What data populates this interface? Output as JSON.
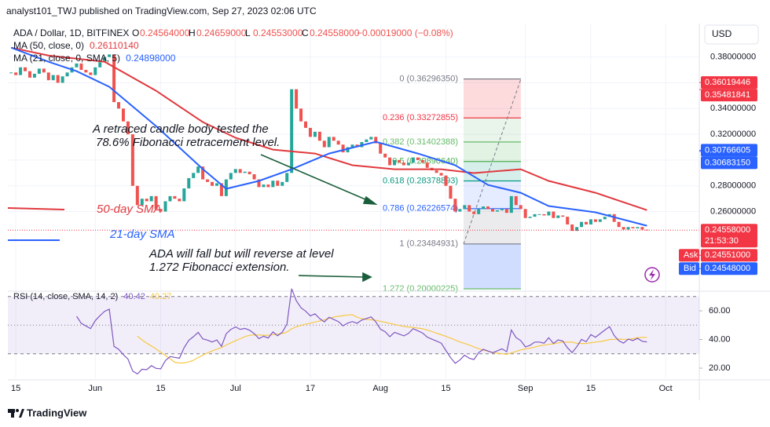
{
  "header": "analyst101_TWJ published on TradingView.com, Sep 27, 2023 02:06 UTC",
  "footer": "TradingView",
  "chart_data": {
    "type": "candlestick",
    "symbol": "ADA / Dollar, 1D, BITFINEX",
    "ohlc": [
      {
        "label": "O",
        "value": "0.24564000"
      },
      {
        "label": "H",
        "value": "0.24659000"
      },
      {
        "label": "L",
        "value": "0.24553000"
      },
      {
        "label": "C",
        "value": "0.24558000"
      }
    ],
    "change": "−0.00019000 (−0.08%)",
    "currency": "USD",
    "colors": {
      "up": "#26a69a",
      "down": "#ef5350"
    },
    "closes": [
      0.368,
      0.366,
      0.372,
      0.369,
      0.364,
      0.367,
      0.371,
      0.368,
      0.362,
      0.366,
      0.36,
      0.365,
      0.368,
      0.372,
      0.375,
      0.37,
      0.368,
      0.366,
      0.372,
      0.376,
      0.38,
      0.382,
      0.345,
      0.34,
      0.33,
      0.32,
      0.28,
      0.265,
      0.27,
      0.268,
      0.272,
      0.262,
      0.26,
      0.268,
      0.272,
      0.27,
      0.268,
      0.278,
      0.286,
      0.29,
      0.295,
      0.285,
      0.283,
      0.28,
      0.282,
      0.272,
      0.285,
      0.29,
      0.293,
      0.29,
      0.291,
      0.289,
      0.285,
      0.279,
      0.281,
      0.279,
      0.284,
      0.28,
      0.283,
      0.29,
      0.355,
      0.34,
      0.33,
      0.325,
      0.318,
      0.322,
      0.315,
      0.31,
      0.318,
      0.315,
      0.312,
      0.306,
      0.31,
      0.312,
      0.31,
      0.314,
      0.316,
      0.318,
      0.313,
      0.305,
      0.302,
      0.296,
      0.3,
      0.298,
      0.296,
      0.298,
      0.302,
      0.3,
      0.298,
      0.294,
      0.292,
      0.29,
      0.288,
      0.28,
      0.27,
      0.26,
      0.262,
      0.265,
      0.26,
      0.258,
      0.262,
      0.264,
      0.262,
      0.26,
      0.261,
      0.262,
      0.259,
      0.272,
      0.265,
      0.262,
      0.255,
      0.256,
      0.258,
      0.258,
      0.257,
      0.26,
      0.255,
      0.257,
      0.256,
      0.25,
      0.245,
      0.248,
      0.252,
      0.25,
      0.254,
      0.252,
      0.254,
      0.256,
      0.258,
      0.252,
      0.248,
      0.246,
      0.248,
      0.247,
      0.248,
      0.246,
      0.24558
    ],
    "xlim": [
      -0.7,
      147.2
    ],
    "xticks": [
      {
        "value": 1,
        "label": "15"
      },
      {
        "value": 18,
        "label": "Jun"
      },
      {
        "value": 32,
        "label": "15"
      },
      {
        "value": 48,
        "label": "Jul"
      },
      {
        "value": 64,
        "label": "17"
      },
      {
        "value": 79,
        "label": "Aug"
      },
      {
        "value": 93,
        "label": "15"
      },
      {
        "value": 110,
        "label": "Sep"
      },
      {
        "value": 124,
        "label": "15"
      },
      {
        "value": 140,
        "label": "Oct"
      }
    ],
    "ylim": [
      0.2,
      0.406
    ],
    "yticks": [
      {
        "value": 0.38,
        "label": "0.38000000"
      },
      {
        "value": 0.36,
        "label": "0.36000000"
      },
      {
        "value": 0.34,
        "label": "0.34000000"
      },
      {
        "value": 0.32,
        "label": "0.32000000"
      },
      {
        "value": 0.3,
        "label": "0.30000000"
      },
      {
        "value": 0.28,
        "label": "0.28000000"
      },
      {
        "value": 0.26,
        "label": "0.26000000"
      }
    ],
    "ma": [
      {
        "name": "MA (50, close, 0)",
        "value_label": "0.26110140",
        "color": "#e0393e",
        "x": [
          0,
          8,
          20,
          31,
          41,
          48,
          56,
          65,
          73,
          82,
          92,
          99,
          109,
          115,
          125,
          136
        ],
        "values": [
          0.3873,
          0.3812,
          0.3763,
          0.3538,
          0.3295,
          0.3173,
          0.3081,
          0.3051,
          0.296,
          0.2929,
          0.2929,
          0.2899,
          0.2929,
          0.2838,
          0.2746,
          0.2611
        ]
      },
      {
        "name": "MA (21, close, 0, SMA, 5)",
        "value_label": "0.24898000",
        "color": "#2962ff",
        "x": [
          0,
          8,
          14,
          21,
          31,
          41,
          46,
          53,
          60,
          68,
          78,
          87,
          95,
          102,
          109,
          115,
          125,
          136
        ],
        "values": [
          0.3873,
          0.3763,
          0.369,
          0.3569,
          0.3264,
          0.293,
          0.2777,
          0.2838,
          0.2929,
          0.3051,
          0.3142,
          0.3051,
          0.296,
          0.2807,
          0.2746,
          0.2643,
          0.2594,
          0.249
        ]
      }
    ],
    "fib": [
      {
        "label": "0 (0.36296350)",
        "value": 0.3629635,
        "color": "#787b86",
        "fill": "rgba(242,54,69,0.18)"
      },
      {
        "label": "0.236 (0.33272855)",
        "value": 0.33272855,
        "color": "#f23645",
        "fill": "rgba(76,175,80,0.12)"
      },
      {
        "label": "0.382 (0.31402388)",
        "value": 0.31402388,
        "color": "#66bb6a",
        "fill": "rgba(76,175,80,0.16)"
      },
      {
        "label": "0.5 (0.29890640)",
        "value": 0.2989064,
        "color": "#4caf50",
        "fill": "rgba(8,153,129,0.16)"
      },
      {
        "label": "0.618 (0.28378893)",
        "value": 0.28378893,
        "color": "#089981",
        "fill": "rgba(41,98,255,0.12)"
      },
      {
        "label": "0.786 (0.26226574)",
        "value": 0.26226574,
        "color": "#2962ff",
        "fill": "rgba(120,123,134,0.15)"
      },
      {
        "label": "1 (0.23484931)",
        "value": 0.23484931,
        "color": "#787b86",
        "fill": "rgba(41,98,255,0.22)"
      },
      {
        "label": "1.272 (0.20000225)",
        "value": 0.20000225,
        "color": "#66bb6a",
        "fill": "none"
      }
    ],
    "price_markers": [
      {
        "value": 0.36019446,
        "label": "0.36019446",
        "color": "#f23645"
      },
      {
        "value": 0.35481841,
        "label": "0.35481841",
        "color": "#f23645"
      },
      {
        "value": 0.30766605,
        "label": "0.30766605",
        "color": "#2962ff"
      },
      {
        "value": 0.3068315,
        "label": "0.30683150",
        "color": "#2962ff"
      }
    ],
    "last_price": {
      "label": "0.24558000",
      "countdown": "21:53:30",
      "color": "#f23645"
    },
    "ask": {
      "name": "Ask",
      "value": 0.24551,
      "label": "0.24551000",
      "color": "#f23645"
    },
    "bid": {
      "name": "Bid",
      "value": 0.24548,
      "label": "0.24548000",
      "color": "#2962ff"
    },
    "annotations": {
      "retrace": [
        "A retraced candle body tested the",
        "78.6% Fibonacci retracement level."
      ],
      "sma50": "50-day SMA",
      "sma21": "21-day SMA",
      "forecast": [
        "ADA  will fall but will reverse at level",
        "1.272 Fibonacci extension."
      ]
    },
    "rsi": {
      "name": "RSI (14, close, SMA, 14, 2)",
      "value_labels": [
        "40.42",
        "40.27"
      ],
      "colors": [
        "#7e57c2",
        "#f7c844"
      ],
      "ylim": [
        12.9,
        71.5
      ],
      "yticks": [
        {
          "value": 60,
          "label": "60.00"
        },
        {
          "value": 40,
          "label": "40.00"
        },
        {
          "value": 20,
          "label": "20.00"
        }
      ],
      "bands": [
        70,
        50,
        30
      ]
    }
  }
}
